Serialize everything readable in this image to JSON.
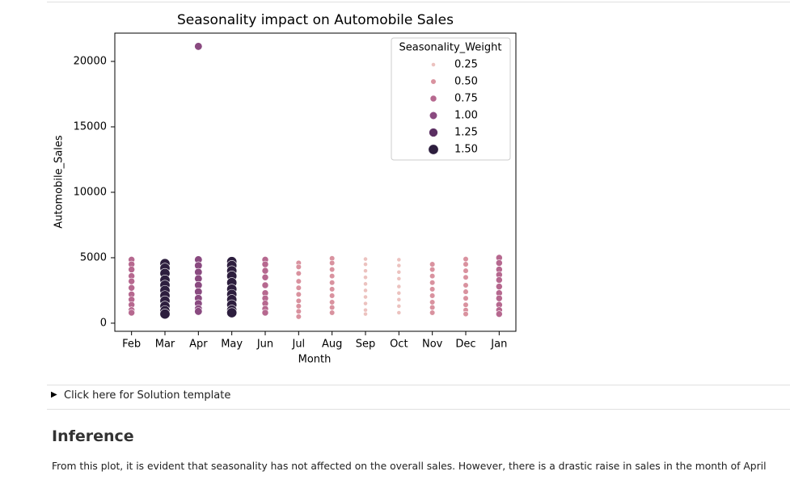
{
  "chart_data": {
    "type": "scatter",
    "title": "Seasonality impact on Automobile Sales",
    "x_label": "Month",
    "y_label": "Automobile_Sales",
    "legend_title": "Seasonality_Weight",
    "legend_position": "upper right",
    "categories": [
      "Feb",
      "Mar",
      "Apr",
      "May",
      "Jun",
      "Jul",
      "Aug",
      "Sep",
      "Oct",
      "Nov",
      "Dec",
      "Jan"
    ],
    "ylim": [
      -620,
      22160
    ],
    "yticks": [
      0,
      5000,
      10000,
      15000,
      20000
    ],
    "series": [
      {
        "name": "0.25",
        "color": "#ecc2bf",
        "x": [
          "Sep",
          "Sep",
          "Sep",
          "Sep",
          "Sep",
          "Sep",
          "Sep",
          "Sep",
          "Sep",
          "Sep",
          "Oct",
          "Oct",
          "Oct",
          "Oct",
          "Oct",
          "Oct",
          "Oct",
          "Oct",
          "Oct"
        ],
        "values": [
          4900,
          4500,
          4000,
          3500,
          3000,
          2500,
          2000,
          1500,
          1000,
          700,
          4850,
          4400,
          3900,
          3400,
          2800,
          2300,
          1800,
          1300,
          800
        ]
      },
      {
        "name": "0.50",
        "color": "#d9929f",
        "x": [
          "Jul",
          "Jul",
          "Jul",
          "Jul",
          "Jul",
          "Jul",
          "Jul",
          "Jul",
          "Jul",
          "Jul",
          "Aug",
          "Aug",
          "Aug",
          "Aug",
          "Aug",
          "Aug",
          "Aug",
          "Aug",
          "Aug",
          "Aug",
          "Nov",
          "Nov",
          "Nov",
          "Nov",
          "Nov",
          "Nov",
          "Nov",
          "Nov",
          "Nov",
          "Dec",
          "Dec",
          "Dec",
          "Dec",
          "Dec",
          "Dec",
          "Dec",
          "Dec",
          "Dec",
          "Dec"
        ],
        "values": [
          4600,
          4300,
          3800,
          3200,
          2700,
          2200,
          1700,
          1300,
          900,
          500,
          4950,
          4600,
          4100,
          3600,
          3100,
          2600,
          2100,
          1600,
          1200,
          800,
          4500,
          4100,
          3600,
          3100,
          2600,
          2100,
          1600,
          1200,
          800,
          4900,
          4500,
          4000,
          3500,
          2900,
          2400,
          1900,
          1400,
          1000,
          700
        ]
      },
      {
        "name": "0.75",
        "color": "#b6688f",
        "x": [
          "Feb",
          "Feb",
          "Feb",
          "Feb",
          "Feb",
          "Feb",
          "Feb",
          "Feb",
          "Feb",
          "Feb",
          "Feb",
          "Jun",
          "Jun",
          "Jun",
          "Jun",
          "Jun",
          "Jun",
          "Jun",
          "Jun",
          "Jun",
          "Jun",
          "Jan",
          "Jan",
          "Jan",
          "Jan",
          "Jan",
          "Jan",
          "Jan",
          "Jan",
          "Jan",
          "Jan",
          "Jan"
        ],
        "values": [
          4850,
          4500,
          4100,
          3600,
          3200,
          2700,
          2200,
          1800,
          1400,
          1000,
          800,
          4850,
          4500,
          4000,
          3500,
          2900,
          2300,
          1900,
          1500,
          1100,
          800,
          5000,
          4600,
          4100,
          3700,
          3300,
          2800,
          2300,
          1900,
          1400,
          1000,
          700
        ]
      },
      {
        "name": "1.00",
        "color": "#8a4a80",
        "x": [
          "Apr",
          "Apr",
          "Apr",
          "Apr",
          "Apr",
          "Apr",
          "Apr",
          "Apr",
          "Apr",
          "Apr",
          "Apr"
        ],
        "values": [
          21150,
          4850,
          4400,
          3900,
          3400,
          2900,
          2400,
          1900,
          1500,
          1100,
          900
        ]
      },
      {
        "name": "1.25",
        "color": "#5b2f62",
        "x": [],
        "values": []
      },
      {
        "name": "1.50",
        "color": "#2d1e3e",
        "x": [
          "Mar",
          "Mar",
          "Mar",
          "Mar",
          "Mar",
          "Mar",
          "Mar",
          "Mar",
          "Mar",
          "Mar",
          "Mar",
          "May",
          "May",
          "May",
          "May",
          "May",
          "May",
          "May",
          "May",
          "May",
          "May",
          "May"
        ],
        "values": [
          4550,
          4200,
          3800,
          3300,
          2900,
          2500,
          2100,
          1700,
          1300,
          950,
          700,
          4700,
          4400,
          4000,
          3600,
          3100,
          2600,
          2200,
          1800,
          1400,
          1000,
          800
        ]
      }
    ]
  },
  "details_summary": "Click here for Solution template",
  "inference_heading": "Inference",
  "inference_text": "From this plot, it is evident that seasonality has not affected on the overall sales. However, there is a drastic raise in sales in the month of April"
}
